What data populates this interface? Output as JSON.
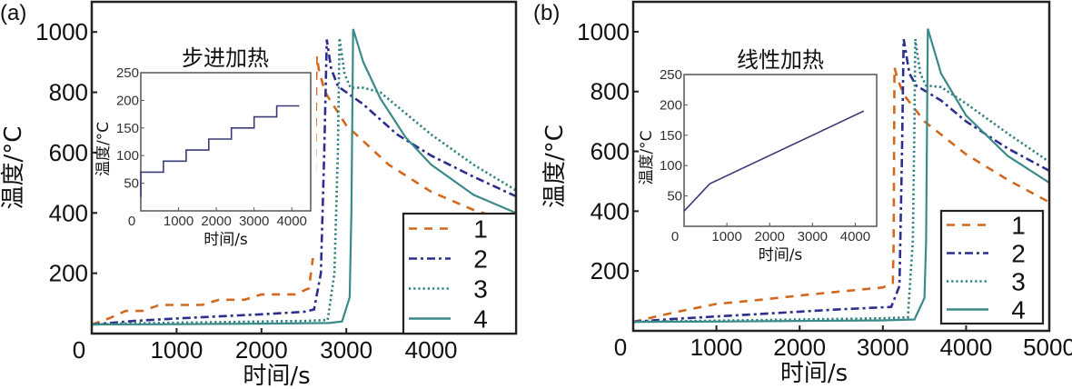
{
  "chart_data": [
    {
      "panel_label": "(a)",
      "type": "line",
      "xlabel": "时间/s",
      "ylabel": "温度/°C",
      "xlim": [
        0,
        5000
      ],
      "ylim": [
        0,
        1100
      ],
      "xticks": [
        0,
        1000,
        2000,
        3000,
        4000
      ],
      "yticks": [
        200,
        400,
        600,
        800,
        1000
      ],
      "grid": false,
      "legend": {
        "placement": "bottom-right",
        "entries": [
          "1",
          "2",
          "3",
          "4"
        ]
      },
      "series": [
        {
          "name": "1",
          "style": "dashed",
          "color": "#d2691e",
          "points": [
            [
              0,
              30
            ],
            [
              200,
              50
            ],
            [
              400,
              75
            ],
            [
              600,
              75
            ],
            [
              800,
              95
            ],
            [
              1100,
              95
            ],
            [
              1300,
              95
            ],
            [
              1500,
              112
            ],
            [
              1800,
              112
            ],
            [
              2000,
              130
            ],
            [
              2400,
              130
            ],
            [
              2560,
              150
            ],
            [
              2620,
              280
            ],
            [
              2650,
              920
            ],
            [
              2680,
              870
            ],
            [
              2750,
              800
            ],
            [
              3000,
              690
            ],
            [
              3500,
              560
            ],
            [
              4000,
              470
            ],
            [
              4500,
              410
            ],
            [
              5000,
              365
            ]
          ]
        },
        {
          "name": "2",
          "style": "dashdot",
          "color": "#2e2e8f",
          "points": [
            [
              0,
              30
            ],
            [
              500,
              42
            ],
            [
              1000,
              50
            ],
            [
              1500,
              57
            ],
            [
              2000,
              64
            ],
            [
              2500,
              72
            ],
            [
              2620,
              80
            ],
            [
              2700,
              200
            ],
            [
              2740,
              600
            ],
            [
              2770,
              975
            ],
            [
              2820,
              880
            ],
            [
              2900,
              820
            ],
            [
              3200,
              760
            ],
            [
              3600,
              660
            ],
            [
              4000,
              590
            ],
            [
              4500,
              520
            ],
            [
              5000,
              455
            ]
          ]
        },
        {
          "name": "3",
          "style": "dotted",
          "color": "#2f7f7f",
          "points": [
            [
              0,
              30
            ],
            [
              500,
              34
            ],
            [
              1000,
              36
            ],
            [
              1500,
              38
            ],
            [
              2000,
              40
            ],
            [
              2500,
              42
            ],
            [
              2780,
              45
            ],
            [
              2860,
              200
            ],
            [
              2900,
              600
            ],
            [
              2920,
              980
            ],
            [
              2980,
              860
            ],
            [
              3050,
              815
            ],
            [
              3200,
              815
            ],
            [
              3400,
              800
            ],
            [
              3700,
              730
            ],
            [
              4000,
              660
            ],
            [
              4500,
              560
            ],
            [
              5000,
              475
            ]
          ]
        },
        {
          "name": "4",
          "style": "solid",
          "color": "#3a8a8a",
          "points": [
            [
              0,
              30
            ],
            [
              1000,
              31
            ],
            [
              2000,
              33
            ],
            [
              2800,
              35
            ],
            [
              2950,
              40
            ],
            [
              3040,
              120
            ],
            [
              3060,
              400
            ],
            [
              3080,
              1010
            ],
            [
              3200,
              900
            ],
            [
              3400,
              780
            ],
            [
              3700,
              650
            ],
            [
              4000,
              560
            ],
            [
              4500,
              460
            ],
            [
              5000,
              400
            ]
          ]
        }
      ],
      "inset": {
        "title": "步进加热",
        "type": "line",
        "xlabel": "时间/s",
        "ylabel": "温度/°C",
        "xlim": [
          0,
          4500
        ],
        "ylim": [
          0,
          250
        ],
        "xticks": [
          0,
          1000,
          2000,
          3000,
          4000
        ],
        "yticks": [
          0,
          50,
          100,
          150,
          200,
          250
        ],
        "color": "#3b3b7a",
        "points": [
          [
            0,
            25
          ],
          [
            0,
            70
          ],
          [
            600,
            70
          ],
          [
            600,
            90
          ],
          [
            1200,
            90
          ],
          [
            1200,
            110
          ],
          [
            1800,
            110
          ],
          [
            1800,
            130
          ],
          [
            2400,
            130
          ],
          [
            2400,
            150
          ],
          [
            3000,
            150
          ],
          [
            3000,
            170
          ],
          [
            3600,
            170
          ],
          [
            3600,
            190
          ],
          [
            4200,
            190
          ]
        ]
      }
    },
    {
      "panel_label": "(b)",
      "type": "line",
      "xlabel": "时间/s",
      "ylabel": "温度/°C",
      "xlim": [
        0,
        5000
      ],
      "ylim": [
        0,
        1100
      ],
      "xticks": [
        0,
        1000,
        2000,
        3000,
        4000,
        5000
      ],
      "yticks": [
        200,
        400,
        600,
        800,
        1000
      ],
      "grid": false,
      "legend": {
        "placement": "bottom-right",
        "entries": [
          "1",
          "2",
          "3",
          "4"
        ]
      },
      "series": [
        {
          "name": "1",
          "style": "dashed",
          "color": "#d2691e",
          "points": [
            [
              0,
              30
            ],
            [
              500,
              62
            ],
            [
              1000,
              90
            ],
            [
              1500,
              103
            ],
            [
              2000,
              118
            ],
            [
              2500,
              132
            ],
            [
              3000,
              145
            ],
            [
              3120,
              160
            ],
            [
              3130,
              300
            ],
            [
              3140,
              880
            ],
            [
              3180,
              840
            ],
            [
              3250,
              790
            ],
            [
              3500,
              700
            ],
            [
              4000,
              590
            ],
            [
              4500,
              505
            ],
            [
              5000,
              430
            ]
          ]
        },
        {
          "name": "2",
          "style": "dashdot",
          "color": "#2e2e8f",
          "points": [
            [
              0,
              30
            ],
            [
              500,
              40
            ],
            [
              1000,
              48
            ],
            [
              1500,
              56
            ],
            [
              2000,
              64
            ],
            [
              2500,
              72
            ],
            [
              3100,
              80
            ],
            [
              3200,
              150
            ],
            [
              3230,
              600
            ],
            [
              3250,
              975
            ],
            [
              3320,
              860
            ],
            [
              3400,
              820
            ],
            [
              3700,
              770
            ],
            [
              4000,
              700
            ],
            [
              4500,
              610
            ],
            [
              5000,
              535
            ]
          ]
        },
        {
          "name": "3",
          "style": "dotted",
          "color": "#2f7f7f",
          "points": [
            [
              0,
              30
            ],
            [
              1000,
              34
            ],
            [
              2000,
              38
            ],
            [
              3000,
              42
            ],
            [
              3300,
              45
            ],
            [
              3360,
              300
            ],
            [
              3380,
              700
            ],
            [
              3390,
              975
            ],
            [
              3450,
              860
            ],
            [
              3520,
              820
            ],
            [
              3700,
              815
            ],
            [
              4000,
              760
            ],
            [
              4500,
              660
            ],
            [
              5000,
              565
            ]
          ]
        },
        {
          "name": "4",
          "style": "solid",
          "color": "#3a8a8a",
          "points": [
            [
              0,
              30
            ],
            [
              1000,
              31
            ],
            [
              2000,
              33
            ],
            [
              3000,
              35
            ],
            [
              3380,
              38
            ],
            [
              3500,
              110
            ],
            [
              3520,
              300
            ],
            [
              3540,
              1010
            ],
            [
              3700,
              860
            ],
            [
              4000,
              720
            ],
            [
              4500,
              585
            ],
            [
              5000,
              495
            ]
          ]
        }
      ],
      "inset": {
        "title": "线性加热",
        "type": "line",
        "xlabel": "时间/s",
        "ylabel": "温度/°C",
        "xlim": [
          0,
          4500
        ],
        "ylim": [
          0,
          250
        ],
        "xticks": [
          0,
          1000,
          2000,
          3000,
          4000
        ],
        "yticks": [
          0,
          50,
          100,
          150,
          200,
          250
        ],
        "color": "#3b3b7a",
        "points": [
          [
            0,
            25
          ],
          [
            600,
            70
          ],
          [
            4200,
            190
          ]
        ]
      }
    }
  ]
}
